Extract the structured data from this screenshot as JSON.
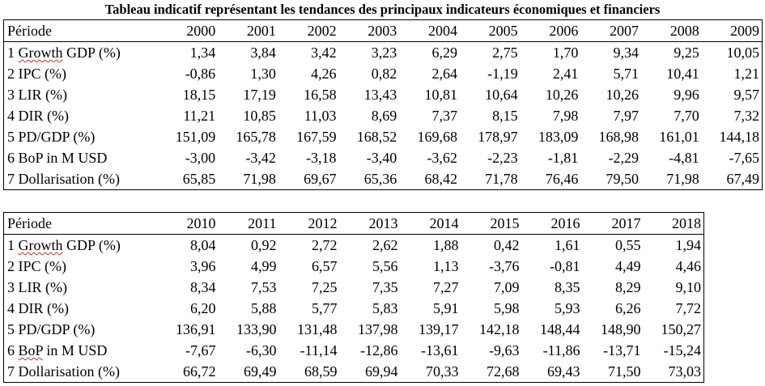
{
  "title": "Tableau indicatif représentant les tendances des principaux indicateurs économiques et financiers",
  "tables": [
    {
      "period_label": "Période",
      "years": [
        "2000",
        "2001",
        "2002",
        "2003",
        "2004",
        "2005",
        "2006",
        "2007",
        "2008",
        "2009"
      ],
      "rows": [
        {
          "num": "1",
          "label": "Growth",
          "rest": " GDP (%)",
          "squiggle": true,
          "values": [
            "1,34",
            "3,84",
            "3,42",
            "3,23",
            "6,29",
            "2,75",
            "1,70",
            "9,34",
            "9,25",
            "10,05"
          ]
        },
        {
          "num": "2",
          "label": "IPC (%)",
          "rest": "",
          "squiggle": false,
          "values": [
            "-0,86",
            "1,30",
            "4,26",
            "0,82",
            "2,64",
            "-1,19",
            "2,41",
            "5,71",
            "10,41",
            "1,21"
          ]
        },
        {
          "num": "3",
          "label": "LIR (%)",
          "rest": "",
          "squiggle": false,
          "values": [
            "18,15",
            "17,19",
            "16,58",
            "13,43",
            "10,81",
            "10,64",
            "10,26",
            "10,26",
            "9,96",
            "9,57"
          ]
        },
        {
          "num": "4",
          "label": "DIR (%)",
          "rest": "",
          "squiggle": false,
          "values": [
            "11,21",
            "10,85",
            "11,03",
            "8,69",
            "7,37",
            "8,15",
            "7,98",
            "7,97",
            "7,70",
            "7,32"
          ]
        },
        {
          "num": "5",
          "label": "PD/GDP (%)",
          "rest": "",
          "squiggle": false,
          "values": [
            "151,09",
            "165,78",
            "167,59",
            "168,52",
            "169,68",
            "178,97",
            "183,09",
            "168,98",
            "161,01",
            "144,18"
          ]
        },
        {
          "num": "6",
          "label": "BoP in M USD",
          "rest": "",
          "squiggle": false,
          "values": [
            "-3,00",
            "-3,42",
            "-3,18",
            "-3,40",
            "-3,62",
            "-2,23",
            "-1,81",
            "-2,29",
            "-4,81",
            "-7,65"
          ]
        },
        {
          "num": "7",
          "label": "Dollarisation (%)",
          "rest": "",
          "squiggle": false,
          "values": [
            "65,85",
            "71,98",
            "69,67",
            "65,36",
            "68,42",
            "71,78",
            "76,46",
            "79,50",
            "71,98",
            "67,49"
          ]
        }
      ]
    },
    {
      "period_label": "Période",
      "years": [
        "2010",
        "2011",
        "2012",
        "2013",
        "2014",
        "2015",
        "2016",
        "2017",
        "2018"
      ],
      "rows": [
        {
          "num": "1",
          "label": "Growth",
          "rest": " GDP (%)",
          "squiggle": true,
          "values": [
            "8,04",
            "0,92",
            "2,72",
            "2,62",
            "1,88",
            "0,42",
            "1,61",
            "0,55",
            "1,94"
          ]
        },
        {
          "num": "2",
          "label": "IPC (%)",
          "rest": "",
          "squiggle": false,
          "values": [
            "3,96",
            "4,99",
            "6,57",
            "5,56",
            "1,13",
            "-3,76",
            "-0,81",
            "4,49",
            "4,46"
          ]
        },
        {
          "num": "3",
          "label": "LIR (%)",
          "rest": "",
          "squiggle": false,
          "values": [
            "8,34",
            "7,53",
            "7,25",
            "7,35",
            "7,27",
            "7,09",
            "8,35",
            "8,29",
            "9,10"
          ]
        },
        {
          "num": "4",
          "label": "DIR (%)",
          "rest": "",
          "squiggle": false,
          "values": [
            "6,20",
            "5,88",
            "5,77",
            "5,83",
            "5,91",
            "5,98",
            "5,93",
            "6,26",
            "7,72"
          ]
        },
        {
          "num": "5",
          "label": "PD/GDP (%)",
          "rest": "",
          "squiggle": false,
          "values": [
            "136,91",
            "133,90",
            "131,48",
            "137,98",
            "139,17",
            "142,18",
            "148,44",
            "148,90",
            "150,27"
          ]
        },
        {
          "num": "6",
          "label": "BoP",
          "rest": " in M USD",
          "squiggle": true,
          "values": [
            "-7,67",
            "-6,30",
            "-11,14",
            "-12,86",
            "-13,61",
            "-9,63",
            "-11,86",
            "-13,71",
            "-15,24"
          ]
        },
        {
          "num": "7",
          "label": "Dollarisation (%)",
          "rest": "",
          "squiggle": false,
          "values": [
            "66,72",
            "69,49",
            "68,59",
            "69,94",
            "70,33",
            "72,68",
            "69,43",
            "71,50",
            "73,03"
          ]
        }
      ]
    }
  ]
}
